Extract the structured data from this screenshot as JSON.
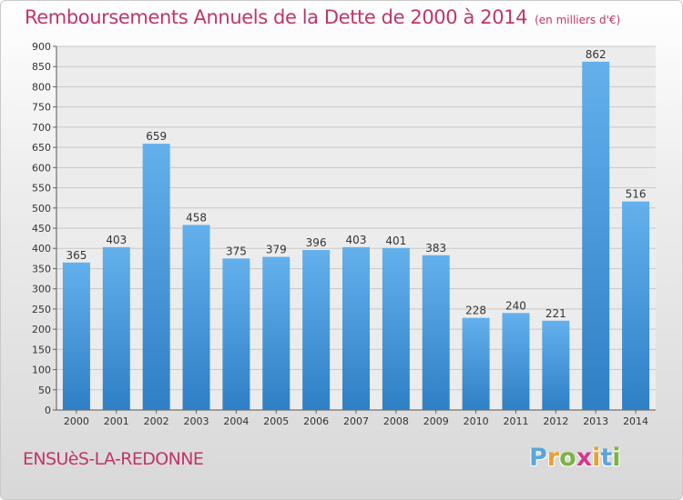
{
  "chart_data": {
    "type": "bar",
    "title": "Remboursements Annuels de la Dette de 2000 à 2014",
    "unit": "(en milliers d'€)",
    "categories": [
      "2000",
      "2001",
      "2002",
      "2003",
      "2004",
      "2005",
      "2006",
      "2007",
      "2008",
      "2009",
      "2010",
      "2011",
      "2012",
      "2013",
      "2014"
    ],
    "values": [
      365,
      403,
      659,
      458,
      375,
      379,
      396,
      403,
      401,
      383,
      228,
      240,
      221,
      862,
      516
    ],
    "ylim": [
      0,
      900
    ],
    "yticks": [
      0,
      50,
      100,
      150,
      200,
      250,
      300,
      350,
      400,
      450,
      500,
      550,
      600,
      650,
      700,
      750,
      800,
      850,
      900
    ],
    "grid": true,
    "bar_color": "#4a9be0",
    "title_color": "#c0356b"
  },
  "footer": {
    "commune": "ENSUèS-LA-REDONNE",
    "brand_letters": [
      "P",
      "r",
      "o",
      "x",
      "i",
      "t",
      "i"
    ],
    "brand_colors": [
      "#5aa6d8",
      "#e8a032",
      "#7cb342",
      "#d23a8a",
      "#e8a032",
      "#5aa6d8",
      "#7cb342"
    ]
  }
}
